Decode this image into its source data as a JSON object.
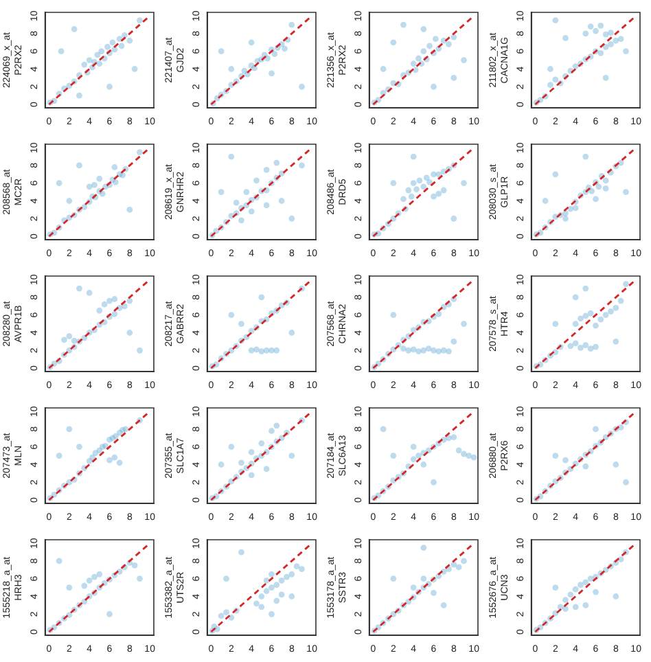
{
  "chart_data": [
    {
      "type": "scatter",
      "ylabel": "224069_x_at\nP2RX2",
      "xlim": [
        -0.4,
        10.4
      ],
      "ylim": [
        -0.4,
        10.4
      ],
      "xticks": [
        0,
        2,
        4,
        6,
        8,
        10
      ],
      "yticks": [
        0,
        2,
        4,
        6,
        8,
        10
      ],
      "grid": false,
      "legend": false,
      "marker": "circle",
      "series": [
        {
          "color": "#6baed6",
          "x": [
            0.1,
            0.5,
            1,
            1.5,
            2,
            2.5,
            3,
            3.5,
            3.8,
            4,
            4.3,
            4.5,
            4.8,
            5,
            5.2,
            5.5,
            5.8,
            6,
            6.3,
            6.5,
            7,
            7.2,
            7.5,
            8,
            1.2,
            2.5,
            6,
            8.5,
            9,
            3
          ],
          "values": [
            0.2,
            0.4,
            1.2,
            1.8,
            2.1,
            2.6,
            3.3,
            4.5,
            3.6,
            5,
            4.2,
            4.8,
            5.6,
            4.6,
            6,
            5.2,
            6.5,
            5.8,
            7,
            6.2,
            7.4,
            6.6,
            7.8,
            7.2,
            6,
            8.5,
            2,
            4,
            9.5,
            1
          ]
        },
        {
          "type": "line",
          "color": "#d62728",
          "line_style": "dashed",
          "marker": "none",
          "x": [
            0,
            10
          ],
          "values": [
            0,
            10
          ]
        }
      ]
    },
    {
      "type": "scatter",
      "ylabel": "221407_at\nGJD2",
      "xlim": [
        -0.4,
        10.4
      ],
      "ylim": [
        -0.4,
        10.4
      ],
      "xticks": [
        0,
        2,
        4,
        6,
        8,
        10
      ],
      "yticks": [
        0,
        2,
        4,
        6,
        8,
        10
      ],
      "grid": false,
      "legend": false,
      "marker": "circle",
      "series": [
        {
          "color": "#6baed6",
          "x": [
            0.2,
            0.6,
            1,
            1.5,
            2,
            2.5,
            3,
            3.3,
            3.6,
            4,
            4.3,
            4.6,
            5,
            5.3,
            5.6,
            6,
            6.3,
            6.6,
            7,
            7.3,
            7.6,
            2,
            4,
            6,
            8,
            1,
            9
          ],
          "values": [
            0.1,
            0.7,
            1.1,
            1.5,
            2.2,
            2.6,
            3.2,
            3.8,
            3.4,
            4.4,
            4.1,
            4.9,
            5.1,
            5.6,
            5.2,
            6.2,
            5.7,
            6.4,
            6.8,
            6.3,
            7.3,
            4,
            7,
            3.5,
            9,
            6,
            2
          ]
        },
        {
          "type": "line",
          "color": "#d62728",
          "line_style": "dashed",
          "marker": "none",
          "x": [
            0,
            10
          ],
          "values": [
            0,
            10
          ]
        }
      ]
    },
    {
      "type": "scatter",
      "ylabel": "221356_x_at\nP2RX2",
      "xlim": [
        -0.4,
        10.4
      ],
      "ylim": [
        -0.4,
        10.4
      ],
      "xticks": [
        0,
        2,
        4,
        6,
        8,
        10
      ],
      "yticks": [
        0,
        2,
        4,
        6,
        8,
        10
      ],
      "grid": false,
      "legend": false,
      "marker": "circle",
      "series": [
        {
          "color": "#6baed6",
          "x": [
            0.1,
            0.5,
            1,
            1.5,
            2,
            2.5,
            3,
            3.5,
            4,
            4.2,
            4.5,
            4.8,
            5,
            5.3,
            5.6,
            6,
            6.2,
            6.5,
            7,
            7.5,
            8,
            1,
            2,
            3,
            6,
            8,
            9,
            5
          ],
          "values": [
            0.2,
            0.5,
            1.3,
            1.7,
            2.4,
            2.3,
            3.3,
            3.6,
            4.6,
            3.9,
            5.2,
            4.6,
            6,
            5.1,
            6.6,
            5.8,
            7.4,
            6.3,
            7.2,
            6.8,
            7.6,
            4,
            7,
            9,
            2,
            3,
            5,
            8.5
          ]
        },
        {
          "type": "line",
          "color": "#d62728",
          "line_style": "dashed",
          "marker": "none",
          "x": [
            0,
            10
          ],
          "values": [
            0,
            10
          ]
        }
      ]
    },
    {
      "type": "scatter",
      "ylabel": "211802_x_at\nCACNA1G",
      "xlim": [
        -0.4,
        10.4
      ],
      "ylim": [
        -0.4,
        10.4
      ],
      "xticks": [
        0,
        2,
        4,
        6,
        8,
        10
      ],
      "yticks": [
        0,
        2,
        4,
        6,
        8,
        10
      ],
      "grid": false,
      "legend": false,
      "marker": "circle",
      "series": [
        {
          "color": "#6baed6",
          "x": [
            0.1,
            0.5,
            1,
            1.5,
            2,
            2.5,
            3,
            3.5,
            4,
            4.5,
            5,
            5.5,
            6,
            6.5,
            7,
            7.5,
            8,
            8.5,
            5,
            5.5,
            6,
            6.5,
            7,
            7.5,
            1.5,
            3,
            7,
            9,
            2
          ],
          "values": [
            0.2,
            0.5,
            0.9,
            2.2,
            2.8,
            2.4,
            3.2,
            3.8,
            4.3,
            4.6,
            5.1,
            5.4,
            6,
            5.8,
            6.5,
            6.8,
            7.2,
            7.4,
            8,
            8.8,
            8.3,
            8.9,
            7.9,
            8.1,
            4,
            7.5,
            3,
            6,
            9.5
          ]
        },
        {
          "type": "line",
          "color": "#d62728",
          "line_style": "dashed",
          "marker": "none",
          "x": [
            0,
            10
          ],
          "values": [
            0,
            10
          ]
        }
      ]
    },
    {
      "type": "scatter",
      "ylabel": "208568_at\nMC2R",
      "xlim": [
        -0.4,
        10.4
      ],
      "ylim": [
        -0.4,
        10.4
      ],
      "xticks": [
        0,
        2,
        4,
        6,
        8,
        10
      ],
      "yticks": [
        0,
        2,
        4,
        6,
        8,
        10
      ],
      "grid": false,
      "legend": false,
      "marker": "circle",
      "series": [
        {
          "color": "#6baed6",
          "x": [
            0.1,
            0.5,
            1,
            1.5,
            2,
            2.5,
            3,
            3.5,
            4,
            4.3,
            4.6,
            5,
            5.3,
            5.6,
            6,
            6.3,
            6.6,
            7,
            7.3,
            7.6,
            4,
            4.5,
            5,
            6.5,
            2,
            3,
            8,
            9,
            1
          ],
          "values": [
            0.2,
            0.4,
            1,
            1.8,
            2.1,
            2.4,
            3,
            3.3,
            3.9,
            4.5,
            4.4,
            5.1,
            4.8,
            5.6,
            5.8,
            6.4,
            6.1,
            7,
            6.9,
            7.6,
            5.6,
            5.8,
            6.5,
            7.8,
            4,
            8,
            3,
            9.5,
            6
          ]
        },
        {
          "type": "line",
          "color": "#d62728",
          "line_style": "dashed",
          "marker": "none",
          "x": [
            0,
            10
          ],
          "values": [
            0,
            10
          ]
        }
      ]
    },
    {
      "type": "scatter",
      "ylabel": "208619_x_at\nGNRHR2",
      "xlim": [
        -0.4,
        10.4
      ],
      "ylim": [
        -0.4,
        10.4
      ],
      "xticks": [
        0,
        2,
        4,
        6,
        8,
        10
      ],
      "yticks": [
        0,
        2,
        4,
        6,
        8,
        10
      ],
      "grid": false,
      "legend": false,
      "marker": "circle",
      "series": [
        {
          "color": "#6baed6",
          "x": [
            0.1,
            0.5,
            1,
            1.5,
            2,
            2.5,
            3,
            3.5,
            4,
            4.5,
            5,
            5.5,
            6,
            6.5,
            7,
            2.5,
            3.5,
            4.5,
            5.5,
            6.5,
            3,
            4,
            5.5,
            1,
            2,
            7,
            8,
            9
          ],
          "values": [
            0.1,
            0.6,
            1,
            1.6,
            2.3,
            2.6,
            3.2,
            3.5,
            4.1,
            4.4,
            5.1,
            5.2,
            6,
            6.6,
            7.1,
            3.8,
            5,
            6.3,
            7.5,
            8.3,
            1.8,
            2.8,
            3.5,
            5,
            9,
            4,
            2,
            8
          ]
        },
        {
          "type": "line",
          "color": "#d62728",
          "line_style": "dashed",
          "marker": "none",
          "x": [
            0,
            10
          ],
          "values": [
            0,
            10
          ]
        }
      ]
    },
    {
      "type": "scatter",
      "ylabel": "208486_at\nDRD5",
      "xlim": [
        -0.4,
        10.4
      ],
      "ylim": [
        -0.4,
        10.4
      ],
      "xticks": [
        0,
        2,
        4,
        6,
        8,
        10
      ],
      "yticks": [
        0,
        2,
        4,
        6,
        8,
        10
      ],
      "grid": false,
      "legend": false,
      "marker": "circle",
      "series": [
        {
          "color": "#6baed6",
          "x": [
            0.1,
            0.5,
            1,
            1.5,
            2,
            2.5,
            3,
            3.2,
            3.5,
            3.8,
            4,
            4.3,
            4.6,
            5,
            5.3,
            5.6,
            6,
            6.5,
            7,
            7.5,
            8,
            6,
            6.5,
            7,
            2,
            4,
            8,
            9
          ],
          "values": [
            0.2,
            0.3,
            0.9,
            1.4,
            2,
            2.6,
            4.2,
            3.1,
            5.2,
            4.5,
            6,
            5.3,
            6.3,
            5.6,
            6.6,
            6.1,
            7,
            7,
            7.3,
            7.6,
            8,
            4.5,
            4.8,
            5.2,
            6,
            9,
            2,
            6
          ]
        },
        {
          "type": "line",
          "color": "#d62728",
          "line_style": "dashed",
          "marker": "none",
          "x": [
            0,
            10
          ],
          "values": [
            0,
            10
          ]
        }
      ]
    },
    {
      "type": "scatter",
      "ylabel": "208030_s_at\nGLP1R",
      "xlim": [
        -0.4,
        10.4
      ],
      "ylim": [
        -0.4,
        10.4
      ],
      "xticks": [
        0,
        2,
        4,
        6,
        8,
        10
      ],
      "yticks": [
        0,
        2,
        4,
        6,
        8,
        10
      ],
      "grid": false,
      "legend": false,
      "marker": "circle",
      "series": [
        {
          "color": "#6baed6",
          "x": [
            0.1,
            0.5,
            1,
            1.5,
            2,
            2.5,
            3,
            3.5,
            4,
            4.5,
            5,
            5.3,
            5.6,
            6,
            6.3,
            6.6,
            7,
            7.5,
            8,
            8.5,
            3,
            4,
            6,
            7,
            1,
            2,
            9,
            5
          ],
          "values": [
            0.2,
            0.4,
            1,
            1.6,
            2.2,
            2.4,
            2.6,
            3.1,
            3.9,
            4.6,
            5,
            5.5,
            5.1,
            6.1,
            5.6,
            6.8,
            6.3,
            7.2,
            7.9,
            8.3,
            2,
            3.2,
            4.2,
            5.4,
            4,
            7,
            5,
            9
          ]
        },
        {
          "type": "line",
          "color": "#d62728",
          "line_style": "dashed",
          "marker": "none",
          "x": [
            0,
            10
          ],
          "values": [
            0,
            10
          ]
        }
      ]
    },
    {
      "type": "scatter",
      "ylabel": "208280_at\nAVPR1B",
      "xlim": [
        -0.4,
        10.4
      ],
      "ylim": [
        -0.4,
        10.4
      ],
      "xticks": [
        0,
        2,
        4,
        6,
        8,
        10
      ],
      "yticks": [
        0,
        2,
        4,
        6,
        8,
        10
      ],
      "grid": false,
      "legend": false,
      "marker": "circle",
      "series": [
        {
          "color": "#6baed6",
          "x": [
            0.1,
            0.5,
            1,
            1.5,
            2,
            2.5,
            3,
            3.5,
            4,
            4.5,
            5,
            5.5,
            6,
            6.5,
            7,
            7.5,
            8,
            5,
            5.5,
            6,
            6.5,
            1.5,
            2,
            2.5,
            3,
            8,
            9,
            4
          ],
          "values": [
            0.1,
            0.5,
            0.8,
            1.5,
            2,
            2.4,
            3,
            3.4,
            4,
            4.3,
            4.9,
            5.2,
            5.8,
            6.1,
            6.8,
            7,
            7.6,
            6.5,
            7.2,
            7.6,
            7.8,
            3.2,
            3.6,
            3.1,
            9,
            4,
            2,
            8.5
          ]
        },
        {
          "type": "line",
          "color": "#d62728",
          "line_style": "dashed",
          "marker": "none",
          "x": [
            0,
            10
          ],
          "values": [
            0,
            10
          ]
        }
      ]
    },
    {
      "type": "scatter",
      "ylabel": "208217_at\nGABRR2",
      "xlim": [
        -0.4,
        10.4
      ],
      "ylim": [
        -0.4,
        10.4
      ],
      "xticks": [
        0,
        2,
        4,
        6,
        8,
        10
      ],
      "yticks": [
        0,
        2,
        4,
        6,
        8,
        10
      ],
      "grid": false,
      "legend": false,
      "marker": "circle",
      "series": [
        {
          "color": "#6baed6",
          "x": [
            0.1,
            0.5,
            1,
            1.5,
            2,
            2.5,
            3,
            3.5,
            4,
            4.5,
            5,
            5.5,
            6,
            6.5,
            7,
            7.5,
            4,
            4.5,
            5,
            5.5,
            6,
            6.5,
            3,
            5,
            8,
            2,
            9
          ],
          "values": [
            0.2,
            0.4,
            1.1,
            1.6,
            2,
            2.5,
            3.1,
            3.5,
            4.2,
            4.6,
            5.3,
            5.5,
            6.2,
            6.5,
            7.1,
            7.4,
            2,
            2.1,
            1.9,
            2,
            2,
            2,
            5,
            8,
            4,
            6,
            9
          ]
        },
        {
          "type": "line",
          "color": "#d62728",
          "line_style": "dashed",
          "marker": "none",
          "x": [
            0,
            10
          ],
          "values": [
            0,
            10
          ]
        }
      ]
    },
    {
      "type": "scatter",
      "ylabel": "207568_at\nCHRNA2",
      "xlim": [
        -0.4,
        10.4
      ],
      "ylim": [
        -0.4,
        10.4
      ],
      "xticks": [
        0,
        2,
        4,
        6,
        8,
        10
      ],
      "yticks": [
        0,
        2,
        4,
        6,
        8,
        10
      ],
      "grid": false,
      "legend": false,
      "marker": "circle",
      "series": [
        {
          "color": "#6baed6",
          "x": [
            0.1,
            0.5,
            1,
            1.5,
            2,
            2.5,
            3,
            3.5,
            4,
            4.5,
            5,
            5.5,
            6,
            6.5,
            7,
            7.5,
            8,
            3,
            3.5,
            4,
            4.5,
            5,
            5.5,
            6,
            6.5,
            7,
            7.5,
            2,
            9,
            8
          ],
          "values": [
            0.1,
            0.5,
            1,
            1.6,
            2.1,
            2.6,
            3.2,
            3.6,
            4.3,
            4.6,
            5.2,
            5.3,
            5.8,
            6.1,
            6.9,
            7.2,
            7.8,
            2.2,
            2,
            2.1,
            1.9,
            2,
            2.2,
            2,
            1.9,
            2,
            1.9,
            6,
            5,
            3
          ]
        },
        {
          "type": "line",
          "color": "#d62728",
          "line_style": "dashed",
          "marker": "none",
          "x": [
            0,
            10
          ],
          "values": [
            0,
            10
          ]
        }
      ]
    },
    {
      "type": "scatter",
      "ylabel": "207578_s_at\nHTR4",
      "xlim": [
        -0.4,
        10.4
      ],
      "ylim": [
        -0.4,
        10.4
      ],
      "xticks": [
        0,
        2,
        4,
        6,
        8,
        10
      ],
      "yticks": [
        0,
        2,
        4,
        6,
        8,
        10
      ],
      "grid": false,
      "legend": false,
      "marker": "circle",
      "series": [
        {
          "color": "#6baed6",
          "x": [
            0.1,
            0.5,
            1,
            1.5,
            2,
            2.5,
            3.5,
            4,
            4.5,
            5,
            5.5,
            6,
            6.5,
            7,
            7.5,
            8,
            8.5,
            4,
            4.5,
            5,
            5.5,
            6,
            4,
            5,
            2,
            8,
            9
          ],
          "values": [
            0.2,
            0.4,
            0.9,
            1.4,
            1.8,
            2.4,
            2.5,
            2.8,
            2.3,
            2.6,
            2.2,
            2.4,
            5.5,
            6,
            6.4,
            6.8,
            7.6,
            5,
            5.6,
            5.9,
            6.2,
            4.8,
            8,
            9,
            5,
            3,
            9.5
          ]
        },
        {
          "type": "line",
          "color": "#d62728",
          "line_style": "dashed",
          "marker": "none",
          "x": [
            0,
            10
          ],
          "values": [
            0,
            10
          ]
        }
      ]
    },
    {
      "type": "scatter",
      "ylabel": "207473_at\nMLN",
      "xlim": [
        -0.4,
        10.4
      ],
      "ylim": [
        -0.4,
        10.4
      ],
      "xticks": [
        0,
        2,
        4,
        6,
        8,
        10
      ],
      "yticks": [
        0,
        2,
        4,
        6,
        8,
        10
      ],
      "grid": false,
      "legend": false,
      "marker": "circle",
      "series": [
        {
          "color": "#6baed6",
          "x": [
            0.1,
            0.5,
            1,
            1.5,
            2,
            2.5,
            3,
            3.5,
            4,
            4.3,
            4.6,
            5,
            5.3,
            5.6,
            6,
            6.3,
            6.6,
            7,
            7.3,
            7.6,
            6,
            6.5,
            7,
            3,
            1,
            9,
            2
          ],
          "values": [
            0.2,
            0.6,
            1.1,
            1.6,
            2,
            2.3,
            3,
            3.6,
            4.4,
            4.8,
            5.3,
            5.6,
            6,
            6.1,
            6.8,
            7,
            7.2,
            7.6,
            7.9,
            8,
            4.5,
            4.8,
            4.2,
            6,
            5,
            9,
            8
          ]
        },
        {
          "type": "line",
          "color": "#d62728",
          "line_style": "dashed",
          "marker": "none",
          "x": [
            0,
            10
          ],
          "values": [
            0,
            10
          ]
        }
      ]
    },
    {
      "type": "scatter",
      "ylabel": "207355_at\nSLC1A7",
      "xlim": [
        -0.4,
        10.4
      ],
      "ylim": [
        -0.4,
        10.4
      ],
      "xticks": [
        0,
        2,
        4,
        6,
        8,
        10
      ],
      "yticks": [
        0,
        2,
        4,
        6,
        8,
        10
      ],
      "grid": false,
      "legend": false,
      "marker": "circle",
      "series": [
        {
          "color": "#6baed6",
          "x": [
            0.1,
            0.5,
            1,
            1.5,
            2,
            2.5,
            3,
            3.5,
            4,
            4.5,
            5,
            5.5,
            6,
            6.5,
            7,
            7.5,
            3,
            4,
            5,
            6,
            6.5,
            4,
            5.5,
            2,
            8,
            1,
            9
          ],
          "values": [
            0.2,
            0.4,
            1,
            1.5,
            2.1,
            2.6,
            3.2,
            3.6,
            4.1,
            4.7,
            5,
            5.4,
            6,
            6.6,
            7,
            7.6,
            4.2,
            5.4,
            6.4,
            7.8,
            8.4,
            2.8,
            3.5,
            6,
            5,
            4,
            9
          ]
        },
        {
          "type": "line",
          "color": "#d62728",
          "line_style": "dashed",
          "marker": "none",
          "x": [
            0,
            10
          ],
          "values": [
            0,
            10
          ]
        }
      ]
    },
    {
      "type": "scatter",
      "ylabel": "207184_at\nSLC6A13",
      "xlim": [
        -0.4,
        10.4
      ],
      "ylim": [
        -0.4,
        10.4
      ],
      "xticks": [
        0,
        2,
        4,
        6,
        8,
        10
      ],
      "yticks": [
        0,
        2,
        4,
        6,
        8,
        10
      ],
      "grid": false,
      "legend": false,
      "marker": "circle",
      "series": [
        {
          "color": "#6baed6",
          "x": [
            0.1,
            0.5,
            1,
            1.5,
            2,
            2.5,
            3,
            3.5,
            4,
            4.5,
            5,
            5.5,
            6,
            6.5,
            7,
            7.5,
            8,
            8.5,
            9,
            9.5,
            10,
            4,
            5,
            2,
            6,
            1
          ],
          "values": [
            0.2,
            0.5,
            1,
            1.5,
            2.2,
            2.6,
            3,
            3.8,
            4.6,
            5,
            5.3,
            5.6,
            6,
            6.4,
            6.8,
            7,
            7.1,
            5.6,
            5.2,
            5,
            4.8,
            6,
            4,
            5,
            2,
            8
          ]
        },
        {
          "type": "line",
          "color": "#d62728",
          "line_style": "dashed",
          "marker": "none",
          "x": [
            0,
            10
          ],
          "values": [
            0,
            10
          ]
        }
      ]
    },
    {
      "type": "scatter",
      "ylabel": "206880_at\nP2RX6",
      "xlim": [
        -0.4,
        10.4
      ],
      "ylim": [
        -0.4,
        10.4
      ],
      "xticks": [
        0,
        2,
        4,
        6,
        8,
        10
      ],
      "yticks": [
        0,
        2,
        4,
        6,
        8,
        10
      ],
      "grid": false,
      "legend": false,
      "marker": "circle",
      "series": [
        {
          "color": "#6baed6",
          "x": [
            0.1,
            0.5,
            1,
            1.5,
            2,
            2.5,
            3,
            3.5,
            4,
            4.5,
            5,
            5.5,
            6,
            6.5,
            7,
            7.5,
            8,
            8.5,
            9,
            3,
            5,
            6,
            2,
            8,
            9
          ],
          "values": [
            0.1,
            0.4,
            1,
            1.6,
            2.1,
            2.5,
            3.1,
            3.5,
            4.1,
            4.6,
            5.1,
            5.5,
            6.1,
            6.5,
            7.1,
            7.5,
            8,
            8.2,
            8.8,
            4.5,
            3.8,
            8,
            5,
            4,
            2
          ]
        },
        {
          "type": "line",
          "color": "#d62728",
          "line_style": "dashed",
          "marker": "none",
          "x": [
            0,
            10
          ],
          "values": [
            0,
            10
          ]
        }
      ]
    },
    {
      "type": "scatter",
      "ylabel": "1555218_a_at\nHRH3",
      "xlim": [
        -0.4,
        10.4
      ],
      "ylim": [
        -0.4,
        10.4
      ],
      "xticks": [
        0,
        2,
        4,
        6,
        8,
        10
      ],
      "yticks": [
        0,
        2,
        4,
        6,
        8,
        10
      ],
      "grid": false,
      "legend": false,
      "marker": "circle",
      "series": [
        {
          "color": "#6baed6",
          "x": [
            0.1,
            0.5,
            1,
            1.5,
            2,
            2.5,
            3,
            3.5,
            4,
            4.5,
            5,
            5.5,
            6,
            6.5,
            7,
            7.5,
            8,
            8.5,
            3.5,
            4,
            4.5,
            5,
            2,
            6,
            9,
            1
          ],
          "values": [
            0.2,
            0.5,
            1,
            1.5,
            1.9,
            2.5,
            3,
            3.4,
            4,
            4.4,
            5,
            5.5,
            5.9,
            6.4,
            6.8,
            7.3,
            7.8,
            7.5,
            5.2,
            5.8,
            6.2,
            6.5,
            5,
            2,
            6,
            8
          ]
        },
        {
          "type": "line",
          "color": "#d62728",
          "line_style": "dashed",
          "marker": "none",
          "x": [
            0,
            10
          ],
          "values": [
            0,
            10
          ]
        }
      ]
    },
    {
      "type": "scatter",
      "ylabel": "1553382_a_at\nUTS2R",
      "xlim": [
        -0.4,
        10.4
      ],
      "ylim": [
        -0.4,
        10.4
      ],
      "xticks": [
        0,
        2,
        4,
        6,
        8,
        10
      ],
      "yticks": [
        0,
        2,
        4,
        6,
        8,
        10
      ],
      "grid": false,
      "legend": false,
      "marker": "circle",
      "series": [
        {
          "color": "#6baed6",
          "x": [
            0.1,
            0.3,
            0.6,
            1,
            1.5,
            2,
            2.5,
            4.5,
            5,
            5.5,
            6,
            6.5,
            7,
            7.5,
            8,
            8.5,
            9,
            5,
            5.5,
            6,
            6.5,
            7,
            1.5,
            3,
            6,
            8
          ],
          "values": [
            0.1,
            0.6,
            0.3,
            1.8,
            2.2,
            1.6,
            2.4,
            3.2,
            4,
            4.6,
            5,
            5.3,
            5.8,
            6.2,
            6.5,
            7.4,
            7.1,
            2.8,
            5.8,
            6.5,
            3.5,
            4.2,
            6,
            9,
            2,
            4
          ]
        },
        {
          "type": "line",
          "color": "#d62728",
          "line_style": "dashed",
          "marker": "none",
          "x": [
            0,
            10
          ],
          "values": [
            0,
            10
          ]
        }
      ]
    },
    {
      "type": "scatter",
      "ylabel": "1553178_a_at\nSSTR3",
      "xlim": [
        -0.4,
        10.4
      ],
      "ylim": [
        -0.4,
        10.4
      ],
      "xticks": [
        0,
        2,
        4,
        6,
        8,
        10
      ],
      "yticks": [
        0,
        2,
        4,
        6,
        8,
        10
      ],
      "grid": false,
      "legend": false,
      "marker": "circle",
      "series": [
        {
          "color": "#6baed6",
          "x": [
            0.1,
            0.5,
            1,
            1.5,
            2,
            2.5,
            3,
            3.5,
            4,
            4.5,
            5,
            5.5,
            6,
            6.5,
            7,
            7.5,
            8,
            8.5,
            4,
            5,
            6,
            2,
            7,
            9,
            5
          ],
          "values": [
            0.1,
            0.5,
            1,
            1.5,
            2,
            2.4,
            3,
            3.4,
            3.9,
            4.5,
            5,
            5.4,
            5.9,
            6.3,
            6.8,
            7.1,
            7.6,
            7.3,
            5,
            6,
            4.4,
            6,
            3,
            8,
            9.5
          ]
        },
        {
          "type": "line",
          "color": "#d62728",
          "line_style": "dashed",
          "marker": "none",
          "x": [
            0,
            10
          ],
          "values": [
            0,
            10
          ]
        }
      ]
    },
    {
      "type": "scatter",
      "ylabel": "1552676_a_at\nUCN3",
      "xlim": [
        -0.4,
        10.4
      ],
      "ylim": [
        -0.4,
        10.4
      ],
      "xticks": [
        0,
        2,
        4,
        6,
        8,
        10
      ],
      "yticks": [
        0,
        2,
        4,
        6,
        8,
        10
      ],
      "grid": false,
      "legend": false,
      "marker": "circle",
      "series": [
        {
          "color": "#6baed6",
          "x": [
            0.1,
            0.5,
            1,
            1.5,
            2,
            2.5,
            3,
            3.5,
            4,
            4.5,
            5,
            5.5,
            6,
            6.5,
            7,
            7.5,
            8,
            8.5,
            3,
            4,
            5,
            6,
            2,
            8,
            9
          ],
          "values": [
            0.2,
            0.5,
            1,
            1.5,
            2.1,
            2.8,
            3.6,
            4.2,
            4.8,
            5.3,
            5.6,
            6,
            6.2,
            6.6,
            7,
            7.4,
            7.8,
            8.2,
            2.6,
            2.8,
            3,
            4.5,
            5,
            4,
            9
          ]
        },
        {
          "type": "line",
          "color": "#d62728",
          "line_style": "dashed",
          "marker": "none",
          "x": [
            0,
            10
          ],
          "values": [
            0,
            10
          ]
        }
      ]
    }
  ]
}
